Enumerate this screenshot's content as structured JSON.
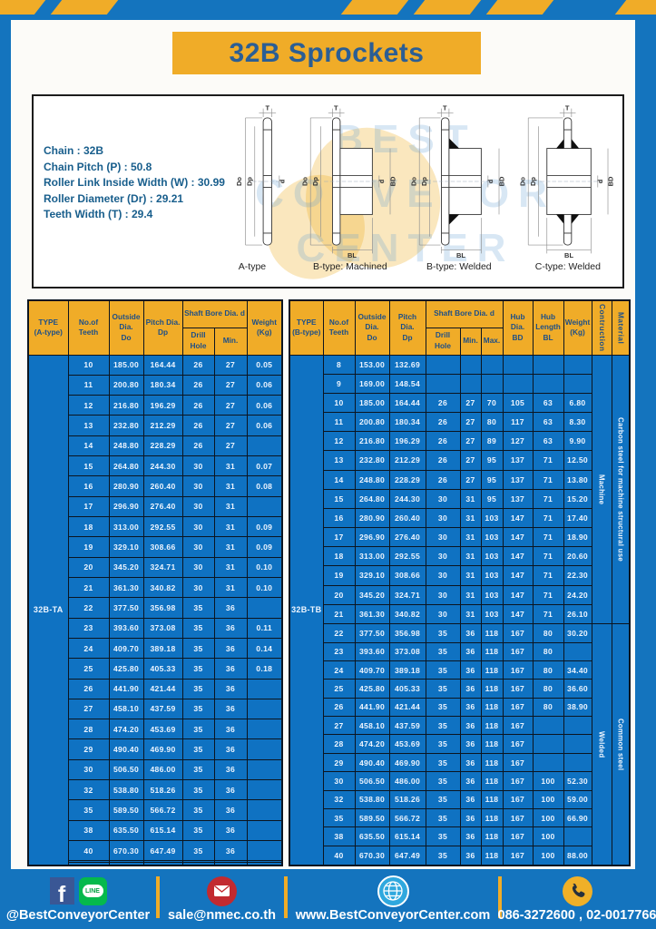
{
  "page": {
    "title": "32B Sprockets"
  },
  "colors": {
    "page_blue": "#1474BE",
    "accent_yellow": "#F0AC28",
    "table_body_blue": "#0F72C2",
    "title_text": "#2B5E94",
    "header_text": "#1D4F87"
  },
  "specs": {
    "lines": [
      "Chain : 32B",
      "Chain Pitch (P) : 50.8",
      "Roller Link Inside Width (W) : 30.99",
      "Roller Diameter (Dr) : 29.21",
      "Teeth Width (T) : 29.4"
    ]
  },
  "watermark": {
    "line1": "BEST",
    "line2": "CONVEYOR",
    "line3": "CENTER"
  },
  "diagrams": {
    "items": [
      {
        "caption": "A-type",
        "labels": {
          "t": "T",
          "do": "Do",
          "dp": "Dp",
          "d": "d"
        }
      },
      {
        "caption": "B-type: Machined",
        "labels": {
          "t": "T",
          "do": "Do",
          "dp": "Dp",
          "d": "d",
          "bd": "BD",
          "bl": "BL"
        }
      },
      {
        "caption": "B-type: Welded",
        "labels": {
          "t": "T",
          "do": "Do",
          "dp": "Dp",
          "d": "d",
          "bd": "BD",
          "bl": "BL"
        }
      },
      {
        "caption": "C-type: Welded",
        "labels": {
          "t": "T",
          "do": "Do",
          "dp": "Dp",
          "d": "d",
          "bd": "BD",
          "bl": "BL"
        }
      }
    ]
  },
  "table_a": {
    "header": {
      "type": "TYPE\n(A-type)",
      "teeth": "No.of\nTeeth",
      "outside": "Outside\nDia.\nDo",
      "pitch": "Pitch Dia.\nDp",
      "shaft_bore": "Shaft Bore Dia. d",
      "drill": "Drill Hole",
      "min": "Min.",
      "weight": "Weight\n(Kg)"
    },
    "type_label": "32B-TA",
    "rows": [
      [
        "10",
        "185.00",
        "164.44",
        "26",
        "27",
        "0.05"
      ],
      [
        "11",
        "200.80",
        "180.34",
        "26",
        "27",
        "0.06"
      ],
      [
        "12",
        "216.80",
        "196.29",
        "26",
        "27",
        "0.06"
      ],
      [
        "13",
        "232.80",
        "212.29",
        "26",
        "27",
        "0.06"
      ],
      [
        "14",
        "248.80",
        "228.29",
        "26",
        "27",
        ""
      ],
      [
        "15",
        "264.80",
        "244.30",
        "30",
        "31",
        "0.07"
      ],
      [
        "16",
        "280.90",
        "260.40",
        "30",
        "31",
        "0.08"
      ],
      [
        "17",
        "296.90",
        "276.40",
        "30",
        "31",
        ""
      ],
      [
        "18",
        "313.00",
        "292.55",
        "30",
        "31",
        "0.09"
      ],
      [
        "19",
        "329.10",
        "308.66",
        "30",
        "31",
        "0.09"
      ],
      [
        "20",
        "345.20",
        "324.71",
        "30",
        "31",
        "0.10"
      ],
      [
        "21",
        "361.30",
        "340.82",
        "30",
        "31",
        "0.10"
      ],
      [
        "22",
        "377.50",
        "356.98",
        "35",
        "36",
        ""
      ],
      [
        "23",
        "393.60",
        "373.08",
        "35",
        "36",
        "0.11"
      ],
      [
        "24",
        "409.70",
        "389.18",
        "35",
        "36",
        "0.14"
      ],
      [
        "25",
        "425.80",
        "405.33",
        "35",
        "36",
        "0.18"
      ],
      [
        "26",
        "441.90",
        "421.44",
        "35",
        "36",
        ""
      ],
      [
        "27",
        "458.10",
        "437.59",
        "35",
        "36",
        ""
      ],
      [
        "28",
        "474.20",
        "453.69",
        "35",
        "36",
        ""
      ],
      [
        "29",
        "490.40",
        "469.90",
        "35",
        "36",
        ""
      ],
      [
        "30",
        "506.50",
        "486.00",
        "35",
        "36",
        ""
      ],
      [
        "32",
        "538.80",
        "518.26",
        "35",
        "36",
        ""
      ],
      [
        "35",
        "589.50",
        "566.72",
        "35",
        "36",
        ""
      ],
      [
        "38",
        "635.50",
        "615.14",
        "35",
        "36",
        ""
      ],
      [
        "40",
        "670.30",
        "647.49",
        "35",
        "36",
        ""
      ],
      [
        "",
        "",
        "",
        "",
        "",
        ""
      ],
      [
        "",
        "",
        "",
        "",
        "",
        ""
      ]
    ]
  },
  "table_b": {
    "header": {
      "type": "TYPE\n(B-type)",
      "teeth": "No.of\nTeeth",
      "outside": "Outside\nDia.\nDo",
      "pitch": "Pitch Dia.\nDp",
      "shaft_bore": "Shaft Bore Dia. d",
      "drill": "Drill Hole",
      "min": "Min.",
      "max": "Max.",
      "hub_dia": "Hub Dia.\nBD",
      "hub_len": "Hub\nLength\nBL",
      "weight": "Weight\n(Kg)",
      "construction": "Contruction",
      "material": "Material"
    },
    "type_label": "32B-TB",
    "rows": [
      [
        "8",
        "153.00",
        "132.69",
        "",
        "",
        "",
        "",
        "",
        ""
      ],
      [
        "9",
        "169.00",
        "148.54",
        "",
        "",
        "",
        "",
        "",
        ""
      ],
      [
        "10",
        "185.00",
        "164.44",
        "26",
        "27",
        "70",
        "105",
        "63",
        "6.80"
      ],
      [
        "11",
        "200.80",
        "180.34",
        "26",
        "27",
        "80",
        "117",
        "63",
        "8.30"
      ],
      [
        "12",
        "216.80",
        "196.29",
        "26",
        "27",
        "89",
        "127",
        "63",
        "9.90"
      ],
      [
        "13",
        "232.80",
        "212.29",
        "26",
        "27",
        "95",
        "137",
        "71",
        "12.50"
      ],
      [
        "14",
        "248.80",
        "228.29",
        "26",
        "27",
        "95",
        "137",
        "71",
        "13.80"
      ],
      [
        "15",
        "264.80",
        "244.30",
        "30",
        "31",
        "95",
        "137",
        "71",
        "15.20"
      ],
      [
        "16",
        "280.90",
        "260.40",
        "30",
        "31",
        "103",
        "147",
        "71",
        "17.40"
      ],
      [
        "17",
        "296.90",
        "276.40",
        "30",
        "31",
        "103",
        "147",
        "71",
        "18.90"
      ],
      [
        "18",
        "313.00",
        "292.55",
        "30",
        "31",
        "103",
        "147",
        "71",
        "20.60"
      ],
      [
        "19",
        "329.10",
        "308.66",
        "30",
        "31",
        "103",
        "147",
        "71",
        "22.30"
      ],
      [
        "20",
        "345.20",
        "324.71",
        "30",
        "31",
        "103",
        "147",
        "71",
        "24.20"
      ],
      [
        "21",
        "361.30",
        "340.82",
        "30",
        "31",
        "103",
        "147",
        "71",
        "26.10"
      ],
      [
        "22",
        "377.50",
        "356.98",
        "35",
        "36",
        "118",
        "167",
        "80",
        "30.20"
      ],
      [
        "23",
        "393.60",
        "373.08",
        "35",
        "36",
        "118",
        "167",
        "80",
        ""
      ],
      [
        "24",
        "409.70",
        "389.18",
        "35",
        "36",
        "118",
        "167",
        "80",
        "34.40"
      ],
      [
        "25",
        "425.80",
        "405.33",
        "35",
        "36",
        "118",
        "167",
        "80",
        "36.60"
      ],
      [
        "26",
        "441.90",
        "421.44",
        "35",
        "36",
        "118",
        "167",
        "80",
        "38.90"
      ],
      [
        "27",
        "458.10",
        "437.59",
        "35",
        "36",
        "118",
        "167",
        "",
        ""
      ],
      [
        "28",
        "474.20",
        "453.69",
        "35",
        "36",
        "118",
        "167",
        "",
        ""
      ],
      [
        "29",
        "490.40",
        "469.90",
        "35",
        "36",
        "118",
        "167",
        "",
        ""
      ],
      [
        "30",
        "506.50",
        "486.00",
        "35",
        "36",
        "118",
        "167",
        "100",
        "52.30"
      ],
      [
        "32",
        "538.80",
        "518.26",
        "35",
        "36",
        "118",
        "167",
        "100",
        "59.00"
      ],
      [
        "35",
        "589.50",
        "566.72",
        "35",
        "36",
        "118",
        "167",
        "100",
        "66.90"
      ],
      [
        "38",
        "635.50",
        "615.14",
        "35",
        "36",
        "118",
        "167",
        "100",
        ""
      ],
      [
        "40",
        "670.30",
        "647.49",
        "35",
        "36",
        "118",
        "167",
        "100",
        "88.00"
      ]
    ],
    "construction": [
      {
        "label": "Machine",
        "rows": 14
      },
      {
        "label": "Welded",
        "rows": 13
      }
    ],
    "material": [
      {
        "label": "Carbon steel for machine structural use",
        "rows": 14
      },
      {
        "label": "Common steel",
        "rows": 13
      }
    ]
  },
  "footer": {
    "facebook_letter": "f",
    "line_label": "LINE",
    "social_handle": "@BestConveyorCenter",
    "email": "sale@nmec.co.th",
    "website": "www.BestConveyorCenter.com",
    "phones": "086-3272600 , 02-0017766"
  }
}
